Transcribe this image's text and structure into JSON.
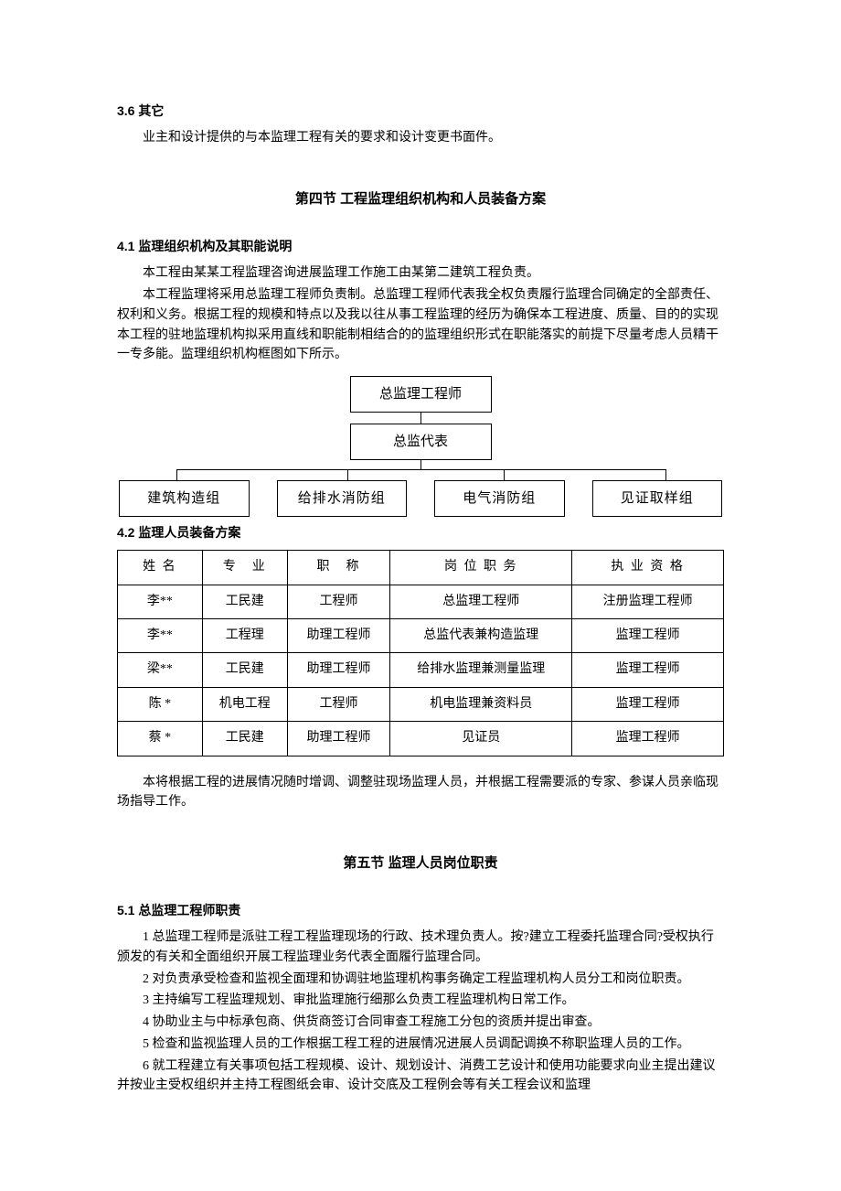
{
  "section36": {
    "heading": "3.6 其它",
    "body": "业主和设计提供的与本监理工程有关的要求和设计变更书面件。"
  },
  "section4": {
    "title": "第四节  工程监理组织机构和人员装备方案"
  },
  "section41": {
    "heading": "4.1 监理组织机构及其职能说明",
    "p1": "本工程由某某工程监理咨询进展监理工作施工由某第二建筑工程负责。",
    "p2": "本工程监理将采用总监理工程师负责制。总监理工程师代表我全权负责履行监理合同确定的全部责任、权利和义务。根据工程的规模和特点以及我以往从事工程监理的经历为确保本工程进度、质量、目的的实现本工程的驻地监理机构拟采用直线和职能制相结合的的监理组织形式在职能落实的前提下尽量考虑人员精干一专多能。监理组织机构框图如下所示。"
  },
  "orgchart": {
    "top": "总监理工程师",
    "mid": "总监代表",
    "subs": [
      "建筑构造组",
      "给排水消防组",
      "电气消防组",
      "见证取样组"
    ]
  },
  "section42": {
    "heading": "4.2 监理人员装备方案"
  },
  "table": {
    "headers": [
      "姓  名",
      "专　业",
      "职　称",
      "岗 位  职 务",
      "执 业 资 格"
    ],
    "rows": [
      [
        "李**",
        "工民建",
        "工程师",
        "总监理工程师",
        "注册监理工程师"
      ],
      [
        "李**",
        "工程理",
        "助理工程师",
        "总监代表兼构造监理",
        "监理工程师"
      ],
      [
        "梁**",
        "工民建",
        "助理工程师",
        "给排水监理兼测量监理",
        "监理工程师"
      ],
      [
        "陈  *",
        "机电工程",
        "工程师",
        "机电监理兼资料员",
        "监理工程师"
      ],
      [
        "蔡  *",
        "工民建",
        "助理工程师",
        "见证员",
        "监理工程师"
      ]
    ],
    "col_widths": [
      "14%",
      "14%",
      "17%",
      "30%",
      "25%"
    ]
  },
  "section42_note": {
    "text": "本将根据工程的进展情况随时增调、调整驻现场监理人员，并根据工程需要派的专家、参谋人员亲临现场指导工作。"
  },
  "section5": {
    "title": "第五节  监理人员岗位职责"
  },
  "section51": {
    "heading": "5.1 总监理工程师职责",
    "items": [
      "1  总监理工程师是派驻工程工程监理现场的行政、技术理负责人。按?建立工程委托监理合同?受权执行颁发的有关和全面组织开展工程监理业务代表全面履行监理合同。",
      "2  对负责承受检查和监视全面理和协调驻地监理机构事务确定工程监理机构人员分工和岗位职责。",
      "3  主持编写工程监理规划、审批监理施行细那么负责工程监理机构日常工作。",
      "4  协助业主与中标承包商、供货商签订合同审查工程施工分包的资质并提出审查。",
      "5   检查和监视监理人员的工作根据工程工程的进展情况进展人员调配调换不称职监理人员的工作。",
      "6   就工程建立有关事项包括工程规模、设计、规划设计、消费工艺设计和使用功能要求向业主提出建议并按业主受权组织并主持工程图纸会审、设计交底及工程例会等有关工程会议和监理"
    ]
  }
}
